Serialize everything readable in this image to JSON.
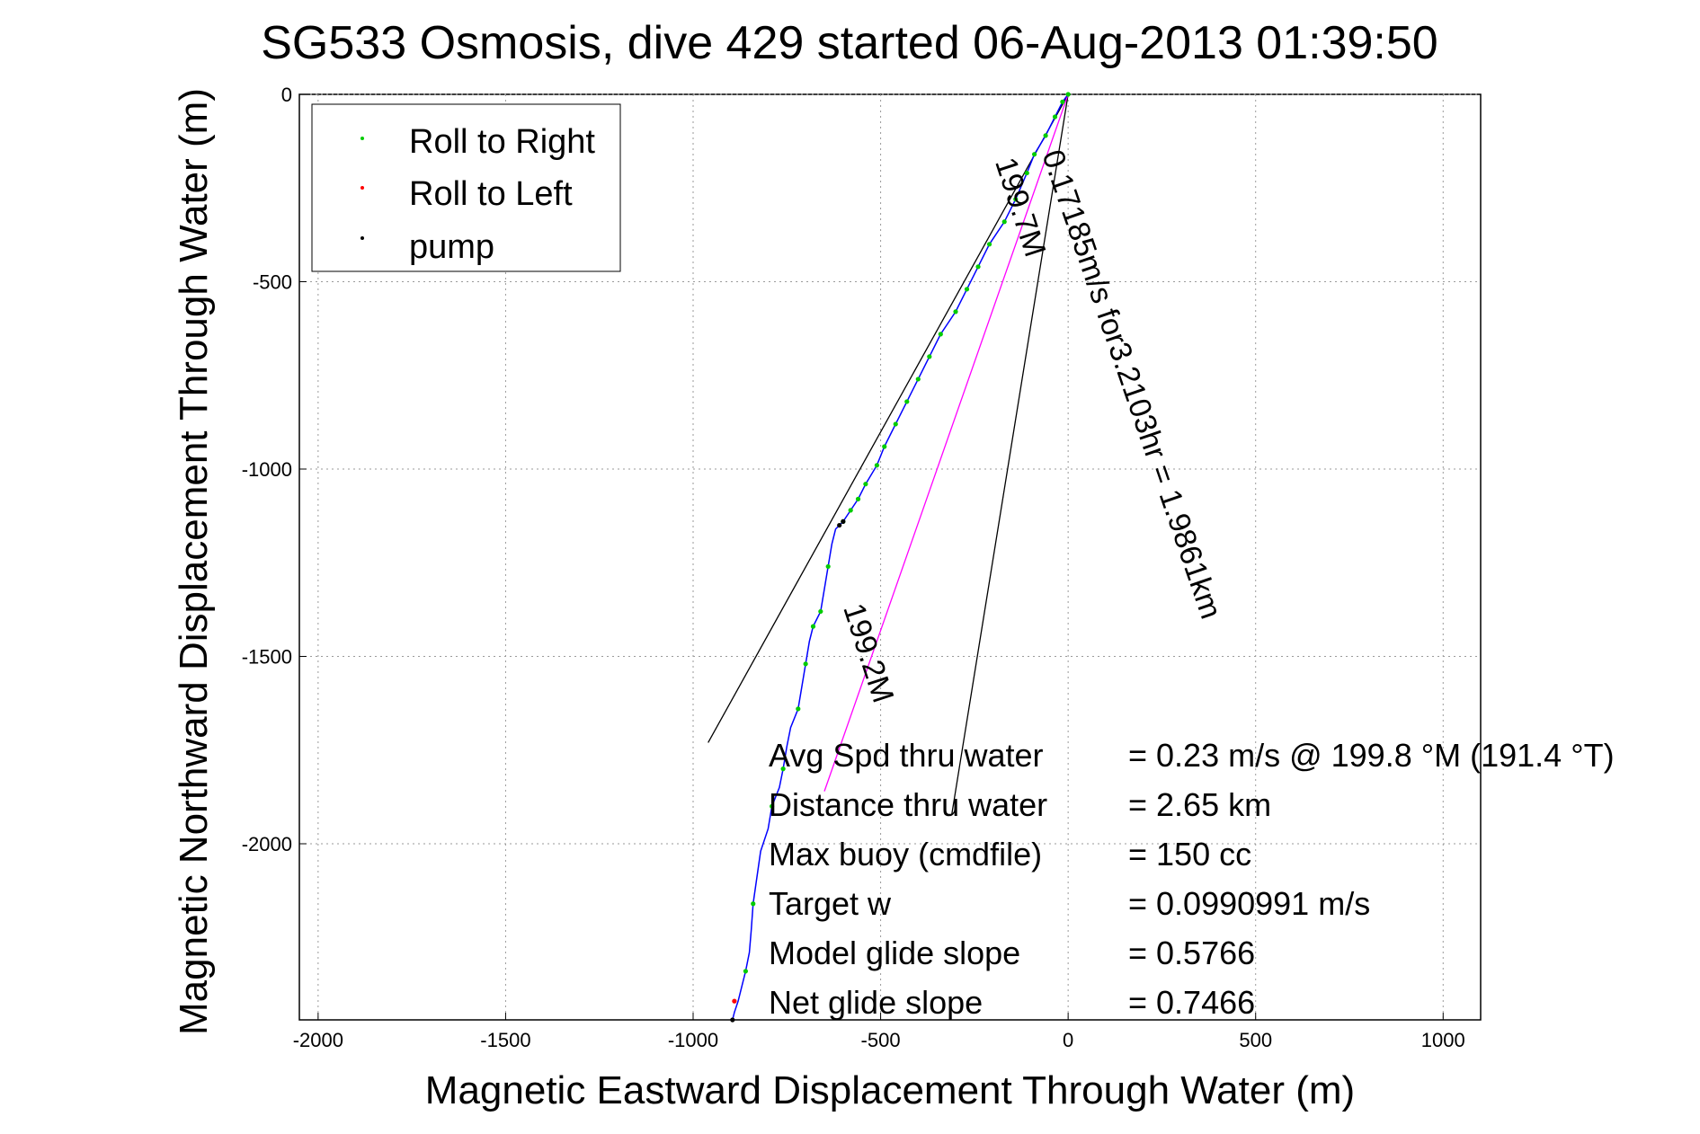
{
  "chart_data": {
    "type": "line",
    "title": "SG533 Osmosis, dive 429 started 06-Aug-2013 01:39:50",
    "xlabel": "Magnetic Eastward Displacement Through Water (m)",
    "ylabel": "Magnetic Northward Displacement Through Water (m)",
    "xlim": [
      -2050,
      1100
    ],
    "ylim": [
      -2470,
      0
    ],
    "xticks": [
      -2000,
      -1500,
      -1000,
      -500,
      0,
      500,
      1000
    ],
    "yticks": [
      0,
      -500,
      -1000,
      -1500,
      -2000
    ],
    "xtick_labels": [
      "-2000",
      "-1500",
      "-1000",
      "-500",
      "0",
      "500",
      "1000"
    ],
    "ytick_labels": [
      "0",
      "-500",
      "-1000",
      "-1500",
      "-2000"
    ],
    "grid": true,
    "legend_position": "top-left",
    "legend": [
      {
        "label": "Roll to Right",
        "color": "#00cc00"
      },
      {
        "label": "Roll to Left",
        "color": "#ff0000"
      },
      {
        "label": "pump",
        "color": "#000000"
      }
    ],
    "track": {
      "color": "#0000ff",
      "x": [
        0,
        -15,
        -35,
        -60,
        -90,
        -110,
        -140,
        -170,
        -210,
        -240,
        -270,
        -300,
        -340,
        -370,
        -400,
        -430,
        -460,
        -490,
        -510,
        -540,
        -560,
        -580,
        -600,
        -620,
        -630,
        -640,
        -650,
        -660,
        -680,
        -690,
        -700,
        -710,
        -720,
        -740,
        -750,
        -760,
        -770,
        -790,
        -800,
        -820,
        -830,
        -840,
        -845,
        -850,
        -860,
        -870,
        -880,
        -890,
        -895
      ],
      "y": [
        0,
        -20,
        -60,
        -110,
        -160,
        -210,
        -280,
        -340,
        -400,
        -460,
        -520,
        -580,
        -640,
        -700,
        -760,
        -820,
        -880,
        -940,
        -990,
        -1040,
        -1080,
        -1110,
        -1140,
        -1160,
        -1200,
        -1260,
        -1320,
        -1380,
        -1420,
        -1460,
        -1520,
        -1580,
        -1640,
        -1690,
        -1740,
        -1800,
        -1850,
        -1900,
        -1960,
        -2020,
        -2090,
        -2160,
        -2230,
        -2290,
        -2340,
        -2380,
        -2420,
        -2450,
        -2470
      ]
    },
    "roll_right_x": [
      0,
      -15,
      -35,
      -60,
      -90,
      -110,
      -140,
      -170,
      -210,
      -240,
      -270,
      -300,
      -340,
      -370,
      -400,
      -430,
      -460,
      -490,
      -510,
      -540,
      -560,
      -580,
      -600,
      -640,
      -660,
      -680,
      -700,
      -720,
      -760,
      -790,
      -840,
      -860
    ],
    "roll_right_y": [
      0,
      -20,
      -60,
      -110,
      -160,
      -210,
      -280,
      -340,
      -400,
      -460,
      -520,
      -580,
      -640,
      -700,
      -760,
      -820,
      -880,
      -940,
      -990,
      -1040,
      -1080,
      -1110,
      -1140,
      -1260,
      -1380,
      -1420,
      -1520,
      -1640,
      -1800,
      -1900,
      -2160,
      -2340
    ],
    "roll_left_x": [
      -890
    ],
    "roll_left_y": [
      -2420
    ],
    "pump_x": [
      -600,
      -610,
      -895
    ],
    "pump_y": [
      -1140,
      -1150,
      -2470
    ],
    "reference_lines": [
      {
        "x": [
          0,
          -960
        ],
        "y": [
          0,
          -1730
        ],
        "color": "#000000"
      },
      {
        "x": [
          0,
          -310
        ],
        "y": [
          0,
          -1920
        ],
        "color": "#000000"
      },
      {
        "x": [
          0,
          -650
        ],
        "y": [
          0,
          -1860
        ],
        "color": "#ff00ff"
      }
    ],
    "annotations": [
      {
        "text": "199.7M",
        "x": -195,
        "y": -180,
        "rotation": 72
      },
      {
        "text": "0.17185m/s for3.2103hr = 1.9861km",
        "x": -70,
        "y": -160,
        "rotation": 71
      },
      {
        "text": "199.2M",
        "x": -600,
        "y": -1370,
        "rotation": 72
      }
    ],
    "stats": [
      {
        "label": "Avg Spd thru water",
        "value": "=  0.23 m/s @ 199.8 °M (191.4 °T)"
      },
      {
        "label": "Distance thru water",
        "value": "=  2.65 km"
      },
      {
        "label": "Max buoy (cmdfile)",
        "value": "= 150 cc"
      },
      {
        "label": "Target w",
        "value": "= 0.0990991 m/s"
      },
      {
        "label": "Model glide slope",
        "value": "= 0.5766"
      },
      {
        "label": "Net glide slope",
        "value": "= 0.7466"
      }
    ]
  }
}
